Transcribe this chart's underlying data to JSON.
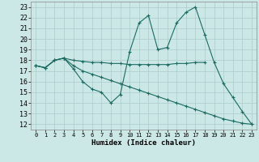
{
  "xlabel": "Humidex (Indice chaleur)",
  "bg_color": "#cce8e6",
  "grid_color": "#aacccc",
  "line_color": "#1a6b62",
  "xlim": [
    -0.5,
    23.5
  ],
  "ylim": [
    11.5,
    23.5
  ],
  "yticks": [
    12,
    13,
    14,
    15,
    16,
    17,
    18,
    19,
    20,
    21,
    22,
    23
  ],
  "xticks": [
    0,
    1,
    2,
    3,
    4,
    5,
    6,
    7,
    8,
    9,
    10,
    11,
    12,
    13,
    14,
    15,
    16,
    17,
    18,
    19,
    20,
    21,
    22,
    23
  ],
  "line1_x": [
    0,
    1,
    2,
    3,
    4,
    5,
    6,
    7,
    8,
    9,
    10,
    11,
    12,
    13,
    14,
    15,
    16,
    17,
    18,
    19,
    20,
    21,
    22,
    23
  ],
  "line1_y": [
    17.5,
    17.3,
    18.0,
    18.2,
    17.2,
    16.0,
    15.3,
    15.0,
    14.0,
    14.8,
    18.8,
    21.5,
    22.2,
    19.0,
    19.2,
    21.5,
    22.5,
    23.0,
    20.4,
    17.8,
    15.8,
    14.5,
    13.2,
    12.0
  ],
  "line2_x": [
    0,
    1,
    2,
    3,
    4,
    5,
    6,
    7,
    8,
    9,
    10,
    11,
    12,
    13,
    14,
    15,
    16,
    17,
    18
  ],
  "line2_y": [
    17.5,
    17.3,
    18.0,
    18.2,
    18.0,
    17.9,
    17.8,
    17.8,
    17.7,
    17.7,
    17.6,
    17.6,
    17.6,
    17.6,
    17.6,
    17.7,
    17.7,
    17.8,
    17.8
  ],
  "line3_x": [
    0,
    1,
    2,
    3,
    4,
    5,
    6,
    7,
    8,
    9,
    10,
    11,
    12,
    13,
    14,
    15,
    16,
    17,
    18,
    19,
    20,
    21,
    22,
    23
  ],
  "line3_y": [
    17.5,
    17.3,
    18.0,
    18.2,
    17.5,
    17.0,
    16.7,
    16.4,
    16.1,
    15.8,
    15.5,
    15.2,
    14.9,
    14.6,
    14.3,
    14.0,
    13.7,
    13.4,
    13.1,
    12.8,
    12.5,
    12.3,
    12.1,
    12.0
  ]
}
